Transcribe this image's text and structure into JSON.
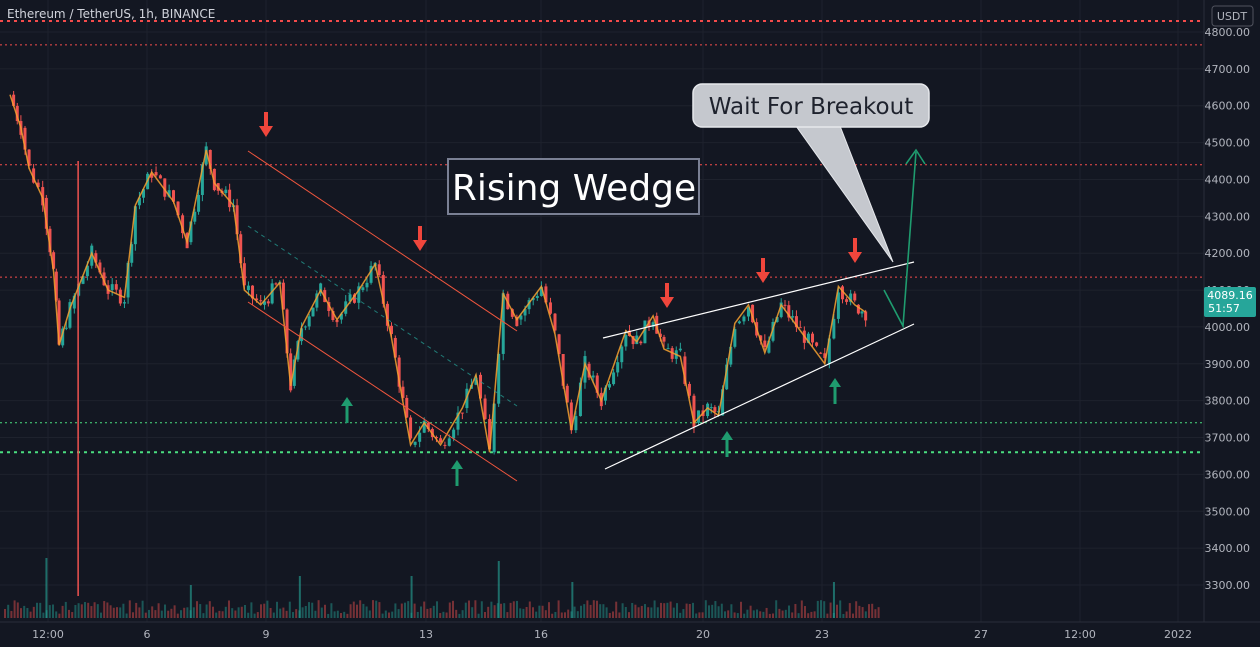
{
  "symbol": "Ethereum / TetherUS, 1h, BINANCE",
  "currency": "USDT",
  "colors": {
    "background": "#131722",
    "up": "#26a69a",
    "down": "#ef5350",
    "zigzag": "#f7a130",
    "wedge": "#ffffff",
    "channel": "#f0563e",
    "support": "#4ade80",
    "resistance": "#f44b4b",
    "arrow_down": "#f0463c",
    "arrow_up": "#1f9c6f",
    "price_tag": "#26a69a"
  },
  "last_price": "4089.16",
  "countdown": "51:57",
  "annotations": {
    "title": "Rising Wedge",
    "callout": "Wait For Breakout"
  },
  "chart_data": {
    "type": "candlestick",
    "y_ticks": [
      "4800.00",
      "4700.00",
      "4600.00",
      "4500.00",
      "4400.00",
      "4300.00",
      "4200.00",
      "4100.00",
      "4000.00",
      "3900.00",
      "3800.00",
      "3700.00",
      "3600.00",
      "3500.00",
      "3400.00",
      "3300.00"
    ],
    "y_range": [
      3250,
      4850
    ],
    "x_ticks": [
      "12:00",
      "6",
      "9",
      "13",
      "16",
      "20",
      "23",
      "27",
      "12:00",
      "2022"
    ],
    "horizontal_levels": [
      {
        "price": 4830,
        "style": "dotted",
        "color": "resistance"
      },
      {
        "price": 4765,
        "style": "dotted",
        "color": "resistance"
      },
      {
        "price": 4440,
        "style": "dotted",
        "color": "resistance"
      },
      {
        "price": 4135,
        "style": "dotted",
        "color": "resistance"
      },
      {
        "price": 3740,
        "style": "dotted",
        "color": "support"
      },
      {
        "price": 3660,
        "style": "dotted",
        "color": "support"
      }
    ],
    "zigzag_path": [
      [
        1.0,
        4630
      ],
      [
        1.2,
        4540
      ],
      [
        1.35,
        4430
      ],
      [
        1.6,
        4350
      ],
      [
        1.8,
        4150
      ],
      [
        1.9,
        3950
      ],
      [
        2.1,
        4050
      ],
      [
        2.5,
        4200
      ],
      [
        2.8,
        4100
      ],
      [
        3.1,
        4080
      ],
      [
        3.3,
        4330
      ],
      [
        3.6,
        4420
      ],
      [
        4.0,
        4340
      ],
      [
        4.25,
        4230
      ],
      [
        4.6,
        4480
      ],
      [
        4.75,
        4390
      ],
      [
        5.1,
        4330
      ],
      [
        5.3,
        4100
      ],
      [
        5.6,
        4060
      ],
      [
        5.95,
        4120
      ],
      [
        6.15,
        3840
      ],
      [
        6.35,
        4000
      ],
      [
        6.7,
        4100
      ],
      [
        7.0,
        4020
      ],
      [
        7.4,
        4100
      ],
      [
        7.7,
        4170
      ],
      [
        8.0,
        3970
      ],
      [
        8.35,
        3680
      ],
      [
        8.6,
        3740
      ],
      [
        8.9,
        3680
      ],
      [
        9.3,
        3780
      ],
      [
        9.55,
        3870
      ],
      [
        9.8,
        3660
      ],
      [
        10.05,
        4090
      ],
      [
        10.3,
        4020
      ],
      [
        10.75,
        4110
      ],
      [
        11.0,
        3980
      ],
      [
        11.3,
        3720
      ],
      [
        11.55,
        3900
      ],
      [
        11.85,
        3800
      ],
      [
        12.3,
        3990
      ],
      [
        12.5,
        3960
      ],
      [
        12.8,
        4030
      ],
      [
        13.0,
        3940
      ],
      [
        13.3,
        3920
      ],
      [
        13.55,
        3740
      ],
      [
        13.8,
        3780
      ],
      [
        14.0,
        3760
      ],
      [
        14.3,
        4010
      ],
      [
        14.55,
        4060
      ],
      [
        14.85,
        3930
      ],
      [
        15.15,
        4060
      ],
      [
        15.5,
        3990
      ],
      [
        15.8,
        3930
      ],
      [
        15.95,
        3900
      ],
      [
        16.2,
        4110
      ],
      [
        16.5,
        4060
      ],
      [
        16.7,
        4040
      ]
    ],
    "volume_spikes": [
      {
        "x": 1.65,
        "vol": 1.0
      },
      {
        "x": 4.3,
        "vol": 0.55
      },
      {
        "x": 6.3,
        "vol": 0.7
      },
      {
        "x": 8.35,
        "vol": 0.7
      },
      {
        "x": 9.95,
        "vol": 0.95
      },
      {
        "x": 11.3,
        "vol": 0.6
      },
      {
        "x": 16.1,
        "vol": 0.6
      }
    ]
  }
}
